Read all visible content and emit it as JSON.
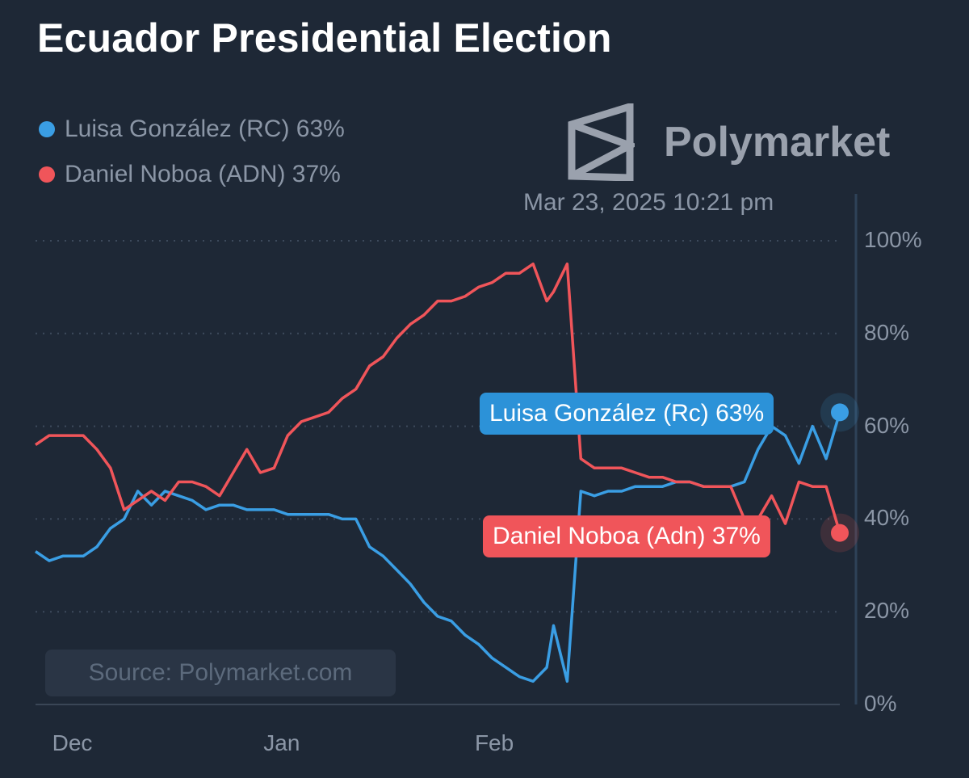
{
  "title": "Ecuador Presidential Election",
  "legend": [
    {
      "label": "Luisa González (RC) 63%",
      "color": "#3a9ee4"
    },
    {
      "label": "Daniel Noboa (ADN) 37%",
      "color": "#f0555a"
    }
  ],
  "brand": {
    "name": "Polymarket",
    "icon": "polymarket-logo-icon"
  },
  "timestamp": "Mar 23, 2025 10:21 pm",
  "source": "Source: Polymarket.com",
  "callouts": {
    "gonzalez": "Luisa González (Rc) 63%",
    "noboa": "Daniel Noboa (Adn) 37%"
  },
  "chart_data": {
    "type": "line",
    "x_ticks": [
      "Dec",
      "Jan",
      "Feb"
    ],
    "y_ticks": [
      "0%",
      "20%",
      "40%",
      "60%",
      "80%",
      "100%"
    ],
    "ylim": [
      0,
      100
    ],
    "grid": true,
    "series": [
      {
        "name": "Luisa González (RC)",
        "color": "#3a9ee4",
        "x": [
          "Nov 26",
          "Nov 28",
          "Nov 30",
          "Dec 2",
          "Dec 4",
          "Dec 6",
          "Dec 8",
          "Dec 10",
          "Dec 12",
          "Dec 14",
          "Dec 16",
          "Dec 18",
          "Dec 20",
          "Dec 22",
          "Dec 24",
          "Dec 26",
          "Dec 28",
          "Dec 30",
          "Jan 1",
          "Jan 3",
          "Jan 5",
          "Jan 7",
          "Jan 9",
          "Jan 11",
          "Jan 13",
          "Jan 15",
          "Jan 17",
          "Jan 19",
          "Jan 21",
          "Jan 23",
          "Jan 25",
          "Jan 27",
          "Jan 29",
          "Jan 31",
          "Feb 2",
          "Feb 4",
          "Feb 6",
          "Feb 8",
          "Feb 9",
          "Feb 11",
          "Feb 13",
          "Feb 15",
          "Feb 17",
          "Feb 19",
          "Feb 21",
          "Feb 23",
          "Feb 25",
          "Feb 27",
          "Mar 1",
          "Mar 3",
          "Mar 5",
          "Mar 7",
          "Mar 9",
          "Mar 11",
          "Mar 13",
          "Mar 15",
          "Mar 17",
          "Mar 19",
          "Mar 21",
          "Mar 23"
        ],
        "values": [
          33,
          31,
          32,
          32,
          34,
          38,
          40,
          46,
          43,
          46,
          45,
          44,
          42,
          43,
          43,
          42,
          42,
          42,
          41,
          41,
          41,
          41,
          40,
          40,
          34,
          32,
          29,
          26,
          22,
          19,
          18,
          15,
          13,
          10,
          8,
          6,
          5,
          8,
          17,
          5,
          46,
          45,
          46,
          46,
          47,
          47,
          47,
          48,
          48,
          47,
          47,
          47,
          48,
          55,
          60,
          58,
          52,
          60,
          53,
          63
        ]
      },
      {
        "name": "Daniel Noboa (ADN)",
        "color": "#f0555a",
        "x": [
          "Nov 26",
          "Nov 28",
          "Nov 30",
          "Dec 2",
          "Dec 4",
          "Dec 6",
          "Dec 8",
          "Dec 10",
          "Dec 12",
          "Dec 14",
          "Dec 16",
          "Dec 18",
          "Dec 20",
          "Dec 22",
          "Dec 24",
          "Dec 26",
          "Dec 28",
          "Dec 30",
          "Jan 1",
          "Jan 3",
          "Jan 5",
          "Jan 7",
          "Jan 9",
          "Jan 11",
          "Jan 13",
          "Jan 15",
          "Jan 17",
          "Jan 19",
          "Jan 21",
          "Jan 23",
          "Jan 25",
          "Jan 27",
          "Jan 29",
          "Jan 31",
          "Feb 2",
          "Feb 4",
          "Feb 6",
          "Feb 8",
          "Feb 9",
          "Feb 11",
          "Feb 13",
          "Feb 15",
          "Feb 17",
          "Feb 19",
          "Feb 21",
          "Feb 23",
          "Feb 25",
          "Feb 27",
          "Mar 1",
          "Mar 3",
          "Mar 5",
          "Mar 7",
          "Mar 9",
          "Mar 11",
          "Mar 13",
          "Mar 15",
          "Mar 17",
          "Mar 19",
          "Mar 21",
          "Mar 23"
        ],
        "values": [
          56,
          58,
          58,
          58,
          55,
          51,
          42,
          44,
          46,
          44,
          48,
          48,
          47,
          45,
          50,
          55,
          50,
          51,
          58,
          61,
          62,
          63,
          66,
          68,
          73,
          75,
          79,
          82,
          84,
          87,
          87,
          88,
          90,
          91,
          93,
          93,
          95,
          87,
          89,
          95,
          53,
          51,
          51,
          51,
          50,
          49,
          49,
          48,
          48,
          47,
          47,
          47,
          40,
          40,
          45,
          39,
          48,
          47,
          47,
          37
        ]
      }
    ]
  }
}
